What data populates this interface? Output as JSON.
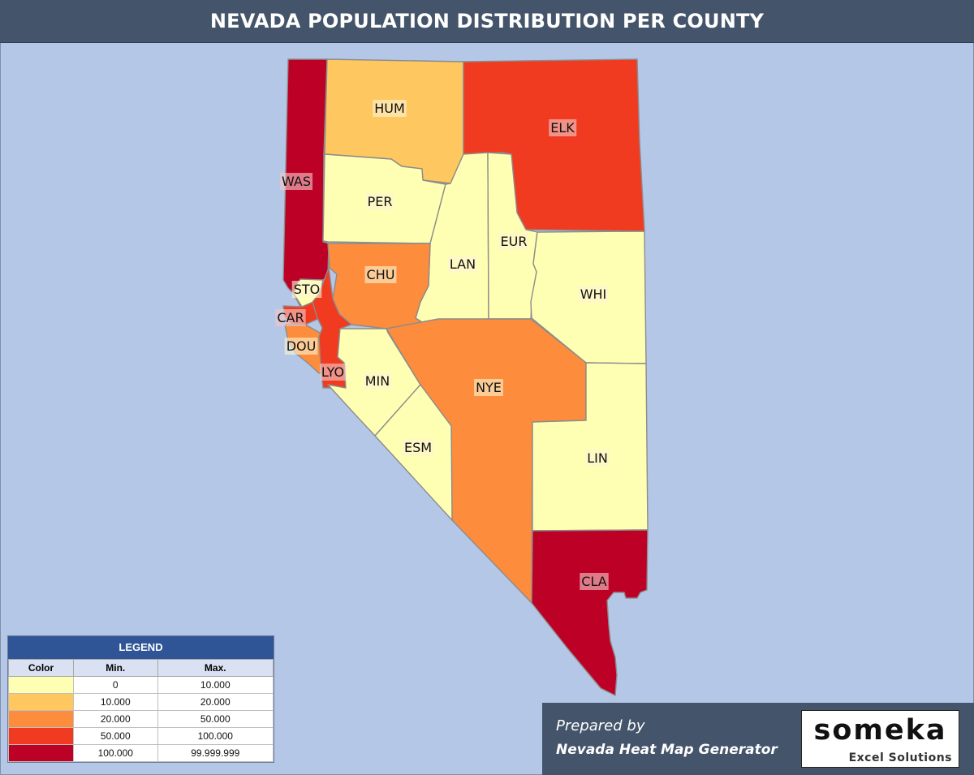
{
  "title": "NEVADA POPULATION DISTRIBUTION PER COUNTY",
  "colors": {
    "background": "#b4c7e7",
    "title_bar": "#44546a",
    "legend_header": "#2f5597",
    "border": "#8c8c8c"
  },
  "legend": {
    "title": "LEGEND",
    "headers": {
      "color": "Color",
      "min": "Min.",
      "max": "Max."
    },
    "rows": [
      {
        "color": "#ffffb3",
        "min": "0",
        "max": "10.000"
      },
      {
        "color": "#fec760",
        "min": "10.000",
        "max": "20.000"
      },
      {
        "color": "#fd8c3c",
        "min": "20.000",
        "max": "50.000"
      },
      {
        "color": "#f03b20",
        "min": "50.000",
        "max": "100.000"
      },
      {
        "color": "#bd0026",
        "min": "100.000",
        "max": "99.999.999"
      }
    ]
  },
  "counties": [
    {
      "id": "WAS",
      "label": "WAS",
      "tier": 4
    },
    {
      "id": "HUM",
      "label": "HUM",
      "tier": 1
    },
    {
      "id": "ELK",
      "label": "ELK",
      "tier": 3
    },
    {
      "id": "PER",
      "label": "PER",
      "tier": 0
    },
    {
      "id": "LAN",
      "label": "LAN",
      "tier": 0
    },
    {
      "id": "EUR",
      "label": "EUR",
      "tier": 0
    },
    {
      "id": "WHI",
      "label": "WHI",
      "tier": 0
    },
    {
      "id": "CHU",
      "label": "CHU",
      "tier": 2
    },
    {
      "id": "STO",
      "label": "STO",
      "tier": 0
    },
    {
      "id": "CAR",
      "label": "CAR",
      "tier": 3
    },
    {
      "id": "DOU",
      "label": "DOU",
      "tier": 2
    },
    {
      "id": "LYO",
      "label": "LYO",
      "tier": 3
    },
    {
      "id": "MIN",
      "label": "MIN",
      "tier": 0
    },
    {
      "id": "NYE",
      "label": "NYE",
      "tier": 2
    },
    {
      "id": "ESM",
      "label": "ESM",
      "tier": 0
    },
    {
      "id": "LIN",
      "label": "LIN",
      "tier": 0
    },
    {
      "id": "CLA",
      "label": "CLA",
      "tier": 4
    }
  ],
  "credit": {
    "prepared_by": "Prepared by",
    "generator": "Nevada Heat Map Generator",
    "brand": "someka",
    "brand_sub": "Excel Solutions"
  }
}
